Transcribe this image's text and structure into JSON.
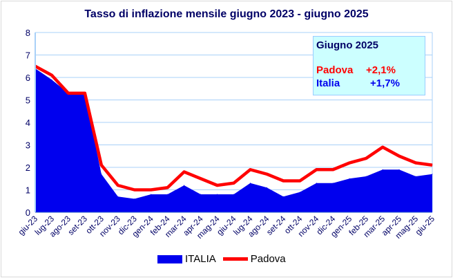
{
  "chart_data": {
    "type": "area",
    "title": "Tasso di inflazione mensile giugno 2023 - giugno 2025",
    "xlabel": "",
    "ylabel": "",
    "ylim": [
      0,
      8
    ],
    "yticks": [
      "0",
      "1",
      "2",
      "3",
      "4",
      "5",
      "6",
      "7",
      "8"
    ],
    "grid": true,
    "legend_position": "bottom",
    "categories": [
      "giu-23",
      "lug-23",
      "ago-23",
      "set-23",
      "ott-23",
      "nov-23",
      "dic-23",
      "gen-24",
      "feb-24",
      "mar-24",
      "apr-24",
      "mag-24",
      "giu-24",
      "lug-24",
      "ago-24",
      "set-24",
      "ott-24",
      "nov-24",
      "dic-24",
      "gen-25",
      "feb-25",
      "mar-25",
      "apr-25",
      "mag-25",
      "giu-25"
    ],
    "series": [
      {
        "name": "ITALIA",
        "kind": "area",
        "color": "#0000ee",
        "values": [
          6.4,
          5.9,
          5.3,
          5.3,
          1.7,
          0.7,
          0.6,
          0.8,
          0.8,
          1.2,
          0.8,
          0.8,
          0.8,
          1.3,
          1.1,
          0.7,
          0.9,
          1.3,
          1.3,
          1.5,
          1.6,
          1.9,
          1.9,
          1.6,
          1.7
        ]
      },
      {
        "name": "Padova",
        "kind": "line",
        "color": "#ff0000",
        "values": [
          6.5,
          6.1,
          5.3,
          5.3,
          2.1,
          1.2,
          1.0,
          1.0,
          1.1,
          1.8,
          1.5,
          1.2,
          1.3,
          1.9,
          1.7,
          1.4,
          1.4,
          1.9,
          1.9,
          2.2,
          2.4,
          2.9,
          2.5,
          2.2,
          2.1
        ]
      }
    ],
    "annotation": {
      "heading": "Giugno 2025",
      "padova_label": "Padova",
      "padova_value": "+2,1%",
      "italia_label": "Italia",
      "italia_value": "+1,7%"
    }
  }
}
